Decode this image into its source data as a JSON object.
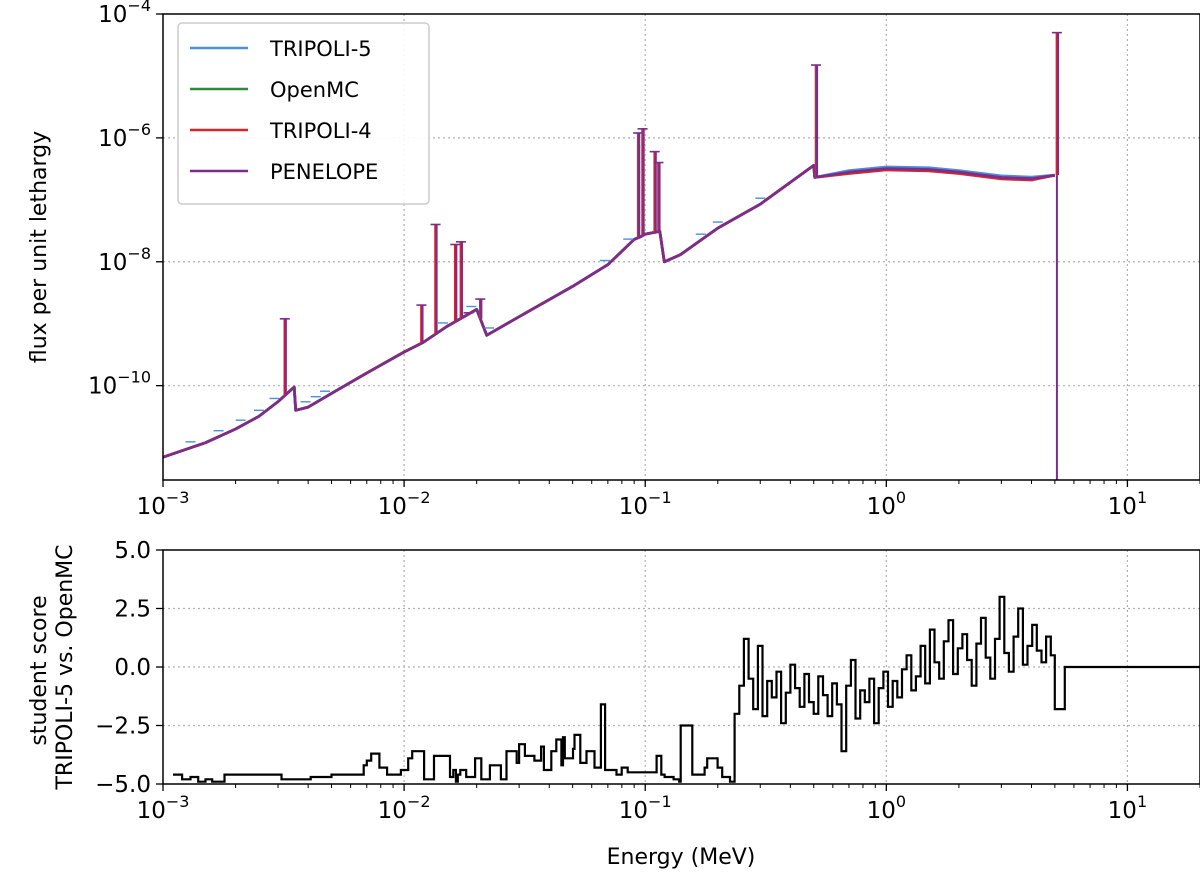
{
  "figure": {
    "xlabel": "Energy (MeV)",
    "x_tick_labels": [
      {
        "base": "10",
        "exp": "−3",
        "value": 0.001
      },
      {
        "base": "10",
        "exp": "−2",
        "value": 0.01
      },
      {
        "base": "10",
        "exp": "−1",
        "value": 0.1
      },
      {
        "base": "10",
        "exp": "0",
        "value": 1
      },
      {
        "base": "10",
        "exp": "1",
        "value": 10
      }
    ]
  },
  "chart_data": [
    {
      "type": "line",
      "title": "",
      "xlabel": "",
      "ylabel": "flux per unit lethargy",
      "xscale": "log",
      "yscale": "log",
      "xlim": [
        0.001,
        20
      ],
      "ylim": [
        3e-12,
        0.0001
      ],
      "grid": true,
      "legend_position": "top-left",
      "y_tick_labels": [
        {
          "base": "10",
          "exp": "−10",
          "value": 1e-10
        },
        {
          "base": "10",
          "exp": "−8",
          "value": 1e-08
        },
        {
          "base": "10",
          "exp": "−6",
          "value": 1e-06
        },
        {
          "base": "10",
          "exp": "−4",
          "value": 0.0001
        }
      ],
      "series": [
        {
          "name": "TRIPOLI-5",
          "color": "#4d8fd8"
        },
        {
          "name": "OpenMC",
          "color": "#2e8b3a"
        },
        {
          "name": "TRIPOLI-4",
          "color": "#d62728"
        },
        {
          "name": "PENELOPE",
          "color": "#7b2d8e"
        }
      ],
      "x": [
        0.001,
        0.0015,
        0.002,
        0.0025,
        0.003,
        0.0035,
        0.00355,
        0.004,
        0.005,
        0.007,
        0.01,
        0.012,
        0.015,
        0.02,
        0.022,
        0.03,
        0.05,
        0.07,
        0.09,
        0.095,
        0.1,
        0.11,
        0.115,
        0.12,
        0.14,
        0.2,
        0.3,
        0.5,
        0.505,
        0.7,
        1.0,
        1.5,
        2.0,
        3.0,
        4.0,
        5.0
      ],
      "flux": [
        7e-12,
        1.2e-11,
        2e-11,
        3.2e-11,
        5.5e-11,
        9.5e-11,
        4e-11,
        4.5e-11,
        7.5e-11,
        1.6e-10,
        3.5e-10,
        5e-10,
        9e-10,
        1.7e-09,
        6.5e-10,
        1.3e-09,
        4e-09,
        9e-09,
        2.3e-08,
        2.5e-08,
        2.8e-08,
        3e-08,
        3.1e-08,
        1e-08,
        1.3e-08,
        3.5e-08,
        8.5e-08,
        3.6e-07,
        2.3e-07,
        2.8e-07,
        3.2e-07,
        3.1e-07,
        2.8e-07,
        2.3e-07,
        2.2e-07,
        2.5e-07
      ],
      "peaks": [
        {
          "energy": 0.0032,
          "top": 1.2e-09
        },
        {
          "energy": 0.0118,
          "top": 2e-09
        },
        {
          "energy": 0.0135,
          "top": 4e-08
        },
        {
          "energy": 0.0163,
          "top": 1.9e-08
        },
        {
          "energy": 0.0172,
          "top": 2.1e-08
        },
        {
          "energy": 0.0185,
          "top": 1.5e-09
        },
        {
          "energy": 0.0207,
          "top": 2.5e-09
        },
        {
          "energy": 0.0935,
          "top": 1.2e-06
        },
        {
          "energy": 0.0975,
          "top": 1.4e-06
        },
        {
          "energy": 0.1095,
          "top": 6e-07
        },
        {
          "energy": 0.1135,
          "top": 4e-07
        },
        {
          "energy": 0.511,
          "top": 1.5e-05
        },
        {
          "energy": 5.1,
          "top": 5e-05
        }
      ],
      "drop_line": {
        "energy": 5.1,
        "bottom": 3e-12
      }
    },
    {
      "type": "line",
      "title": "",
      "xlabel": "Energy (MeV)",
      "ylabel": "student score\nTRIPOLI-5 vs. OpenMC",
      "ylabel_lines": [
        "student score",
        "TRIPOLI-5 vs. OpenMC"
      ],
      "xscale": "log",
      "yscale": "linear",
      "xlim": [
        0.001,
        20
      ],
      "ylim": [
        -5,
        5
      ],
      "grid": true,
      "y_tick_labels": [
        "−5.0",
        "−2.5",
        "0.0",
        "2.5",
        "5.0"
      ],
      "y_tick_values": [
        -5,
        -2.5,
        0,
        2.5,
        5
      ],
      "series": [
        {
          "name": "TRIPOLI-5 vs. OpenMC",
          "color": "#000000"
        }
      ],
      "x": [
        0.0011,
        0.0012,
        0.0013,
        0.0014,
        0.0015,
        0.0016,
        0.0018,
        0.0031,
        0.0033,
        0.0041,
        0.005,
        0.0068,
        0.007,
        0.0073,
        0.0079,
        0.0085,
        0.0097,
        0.0104,
        0.0108,
        0.0121,
        0.0133,
        0.0155,
        0.016,
        0.0164,
        0.0167,
        0.0171,
        0.0181,
        0.0197,
        0.0209,
        0.0227,
        0.0252,
        0.0266,
        0.0293,
        0.03,
        0.0317,
        0.0347,
        0.037,
        0.038,
        0.0408,
        0.0428,
        0.0449,
        0.0456,
        0.0464,
        0.0502,
        0.0509,
        0.0538,
        0.0571,
        0.0616,
        0.0655,
        0.0682,
        0.076,
        0.0799,
        0.0846,
        0.1115,
        0.1166,
        0.1204,
        0.1311,
        0.1383,
        0.1403,
        0.1568,
        0.1764,
        0.1808,
        0.1997,
        0.2087,
        0.2247,
        0.2349,
        0.2456,
        0.2567,
        0.2684,
        0.2806,
        0.2933,
        0.3066,
        0.3205,
        0.3351,
        0.3503,
        0.3662,
        0.3828,
        0.4002,
        0.4183,
        0.4373,
        0.4572,
        0.4779,
        0.4996,
        0.5223,
        0.546,
        0.5708,
        0.5967,
        0.6238,
        0.6521,
        0.6817,
        0.7127,
        0.745,
        0.7789,
        0.8142,
        0.8512,
        0.8898,
        0.9302,
        0.9725,
        1.0166,
        1.0628,
        1.111,
        1.1614,
        1.2142,
        1.2693,
        1.3269,
        1.3872,
        1.4501,
        1.516,
        1.5848,
        1.6567,
        1.7319,
        1.8105,
        1.8928,
        1.9787,
        2.0685,
        2.1624,
        2.2606,
        2.3632,
        2.4705,
        2.5827,
        2.7,
        2.8226,
        2.9507,
        3.0847,
        3.2247,
        3.3712,
        3.5242,
        3.6842,
        3.8515,
        4.0264,
        4.2092,
        4.4003,
        4.6001,
        4.8089,
        5.0,
        5.5,
        7,
        10,
        15,
        20
      ],
      "student_score": [
        -4.6,
        -4.8,
        -4.7,
        -4.9,
        -4.8,
        -4.9,
        -4.6,
        -4.8,
        -4.8,
        -4.7,
        -4.6,
        -4.2,
        -4.0,
        -3.7,
        -4.3,
        -4.6,
        -4.4,
        -3.9,
        -3.6,
        -4.8,
        -3.8,
        -4.7,
        -4.4,
        -4.9,
        -4.6,
        -4.4,
        -4.7,
        -3.9,
        -4.8,
        -4.2,
        -4.8,
        -3.6,
        -4.1,
        -3.3,
        -3.8,
        -4.0,
        -3.4,
        -4.4,
        -3.6,
        -3.1,
        -4.2,
        -3.0,
        -3.9,
        -3.5,
        -2.9,
        -4.1,
        -3.6,
        -4.3,
        -1.6,
        -4.4,
        -4.6,
        -4.3,
        -4.5,
        -3.8,
        -4.6,
        -4.7,
        -4.8,
        -4.9,
        -2.5,
        -4.6,
        -4.3,
        -3.9,
        -4.3,
        -4.7,
        -4.9,
        -2.0,
        -0.8,
        1.2,
        -0.5,
        -1.8,
        0.9,
        -2.1,
        -0.6,
        -1.3,
        -0.2,
        -2.4,
        -1.1,
        0.1,
        -0.9,
        -1.7,
        -0.3,
        -1.5,
        -2.0,
        -0.4,
        -1.2,
        -2.1,
        -0.7,
        -1.6,
        -3.6,
        -0.8,
        0.3,
        -2.2,
        -1.0,
        -1.5,
        -0.5,
        -2.4,
        -0.9,
        -0.2,
        -1.7,
        -0.6,
        -1.3,
        -0.1,
        0.5,
        -1.0,
        -0.4,
        0.9,
        -0.7,
        1.6,
        0.2,
        -0.5,
        1.1,
        2.0,
        -0.3,
        0.8,
        1.4,
        0.3,
        -0.8,
        1.0,
        2.1,
        0.4,
        -0.5,
        1.2,
        3.0,
        0.6,
        -0.2,
        1.3,
        2.5,
        0.1,
        0.9,
        1.8,
        0.7,
        0.2,
        1.3,
        0.5,
        -1.8,
        0.0,
        0.0,
        0.0,
        0.0,
        0.0,
        0.0
      ]
    }
  ]
}
